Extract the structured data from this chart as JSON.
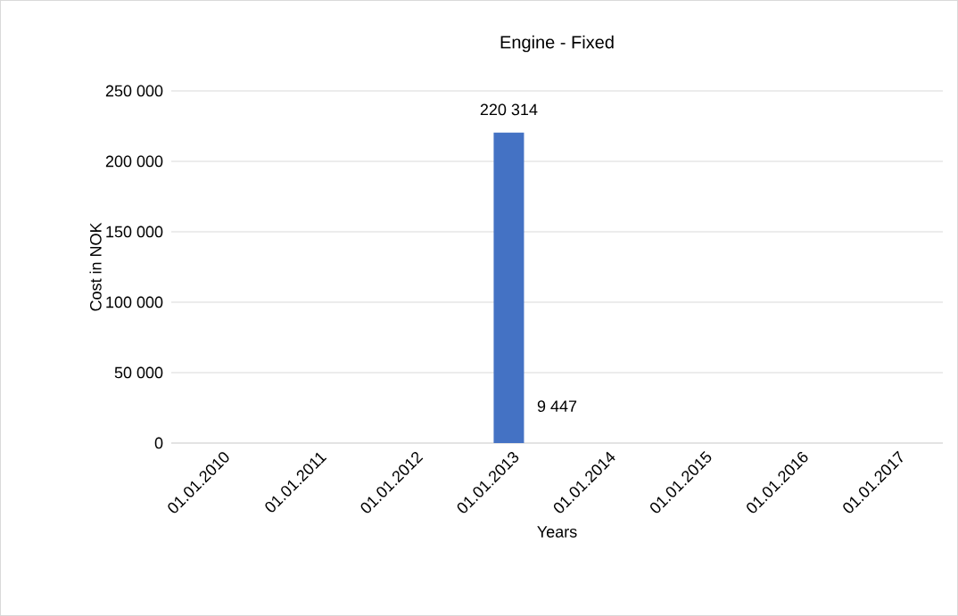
{
  "chart_data": {
    "type": "bar",
    "title": "Engine - Fixed",
    "xlabel": "Years",
    "ylabel": "Cost in NOK",
    "categories": [
      "01.01.2010",
      "01.01.2011",
      "01.01.2012",
      "01.01.2013",
      "01.01.2014",
      "01.01.2015",
      "01.01.2016",
      "01.01.2017"
    ],
    "values": [
      null,
      null,
      null,
      220314,
      null,
      null,
      null,
      null
    ],
    "value_labels": [
      null,
      null,
      null,
      "220 314",
      null,
      null,
      null,
      null
    ],
    "color": "#4472c4",
    "ylim": [
      0,
      250000
    ],
    "yticks": [
      {
        "value": 0,
        "label": "0"
      },
      {
        "value": 50000,
        "label": "50 000"
      },
      {
        "value": 100000,
        "label": "100 000"
      },
      {
        "value": 150000,
        "label": "150 000"
      },
      {
        "value": 200000,
        "label": "200 000"
      },
      {
        "value": 250000,
        "label": "250 000"
      }
    ],
    "annotations": [
      "9 447"
    ],
    "grid": "y"
  }
}
